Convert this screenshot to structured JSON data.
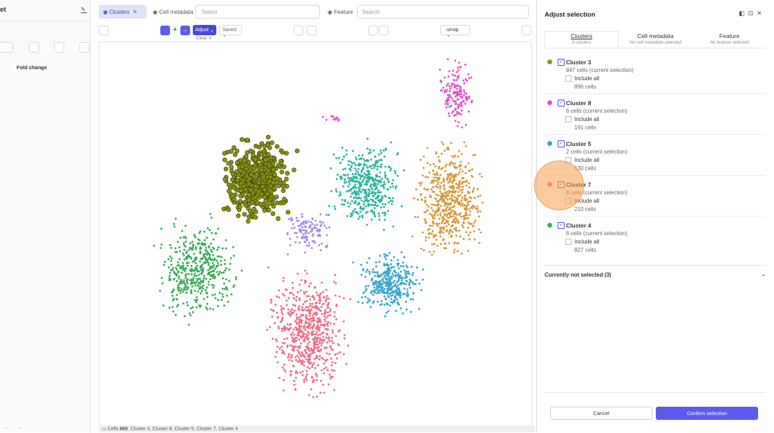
{
  "left_panel": {
    "title": "et",
    "label": "Fold change"
  },
  "toolbar": {
    "clusters_tab": "Clusters",
    "cell_metadata": "Cell metadata",
    "select_placeholder": "Select",
    "feature": "Feature",
    "search_placeholder": "Search",
    "adjust": "Adjust",
    "saved": "Saved",
    "clear": "Clear",
    "embedding": "umap"
  },
  "status_bar": {
    "cells_label": "Cells",
    "cells_count": "869",
    "selection": "Cluster 3, Cluster 8, Cluster 5, Cluster 7, Cluster 4"
  },
  "panel": {
    "title": "Adjust selection",
    "tabs": [
      {
        "label": "Clusters",
        "sub": "8 clusters"
      },
      {
        "label": "Cell metadata",
        "sub": "No cell metadata selected"
      },
      {
        "label": "Feature",
        "sub": "No feature selected"
      }
    ],
    "clusters": [
      {
        "name": "Cluster 3",
        "current": "847 cells (current selection)",
        "include": "Include all",
        "total": "896 cells",
        "color": "#8a9216"
      },
      {
        "name": "Cluster 8",
        "current": "6 cells (current selection)",
        "include": "Include all",
        "total": "191 cells",
        "color": "#e055c8"
      },
      {
        "name": "Cluster 5",
        "current": "2 cells (current selection)",
        "include": "Include all",
        "total": "630 cells",
        "color": "#2bb3a3"
      },
      {
        "name": "Cluster 7",
        "current": "8 cells (current selection)",
        "include": "Include all",
        "total": "210 cells",
        "color": "#ee6e85"
      },
      {
        "name": "Cluster 4",
        "current": "6 cells (current selection)",
        "include": "Include all",
        "total": "827 cells",
        "color": "#3aac5a"
      }
    ],
    "not_selected": "Currently not selected (3)",
    "cancel": "Cancel",
    "confirm": "Confirm selection"
  }
}
